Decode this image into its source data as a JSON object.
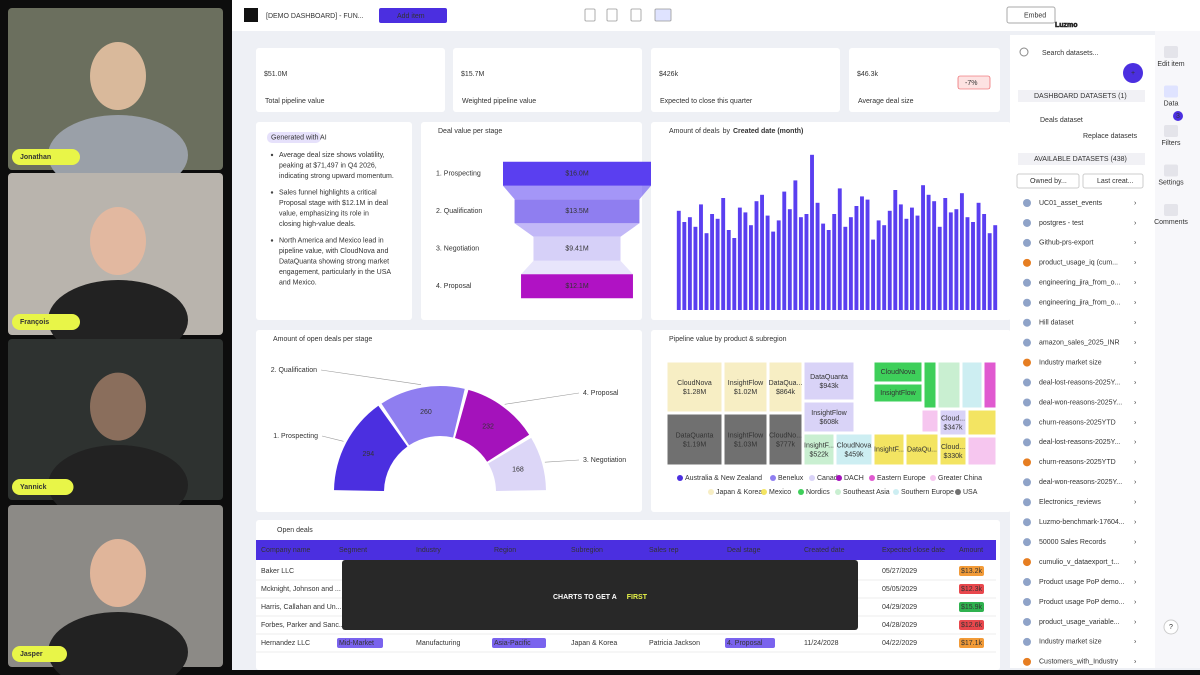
{
  "participants": [
    "Jonathan",
    "François",
    "Yannick",
    "Jasper"
  ],
  "caption": {
    "text": "CHARTS TO GET A",
    "highlight": "FIRST"
  },
  "logo": "Luzmo",
  "toolbar": {
    "dashboard_name": "[DEMO DASHBOARD] - FUN...",
    "add_item": "Add item",
    "embed": "Embed"
  },
  "kpis": [
    {
      "value": "$51.0M",
      "label": "Total pipeline value"
    },
    {
      "value": "$15.7M",
      "label": "Weighted pipeline value"
    },
    {
      "value": "$426k",
      "label": "Expected to close this quarter"
    },
    {
      "value": "$46.3k",
      "label": "Average deal size",
      "badge": "-7%"
    }
  ],
  "ai_card": {
    "tag": "Generated with AI",
    "bullets": [
      "Average deal size shows volatility, peaking at $71,497 in Q4 2026, indicating strong upward momentum.",
      "Sales funnel highlights a critical Proposal stage with $12.1M in deal value, emphasizing its role in closing high-value deals.",
      "North America and Mexico lead in pipeline value, with CloudNova and DataQuanta showing strong market engagement, particularly in the USA and Mexico."
    ]
  },
  "chart_data": [
    {
      "type": "funnel",
      "title": "Deal value per stage",
      "categories": [
        "1. Prospecting",
        "2. Qualification",
        "3. Negotiation",
        "4. Proposal"
      ],
      "values": [
        16.0,
        13.5,
        9.41,
        12.1
      ],
      "value_labels": [
        "$16.0M",
        "$13.5M",
        "$9.41M",
        "$12.1M"
      ],
      "colors": [
        "#5a3ff0",
        "#8f7ef0",
        "#d6d0f8",
        "#b012c4"
      ]
    },
    {
      "type": "bar",
      "title": "Amount of deals",
      "by": "by",
      "dimension": "Created date (month)",
      "color": "#5a3ff0",
      "ylim": [
        0,
        100
      ],
      "values": [
        62,
        55,
        58,
        52,
        66,
        48,
        60,
        57,
        70,
        50,
        45,
        64,
        61,
        53,
        68,
        72,
        59,
        49,
        56,
        74,
        63,
        81,
        58,
        60,
        97,
        67,
        54,
        50,
        60,
        76,
        52,
        58,
        65,
        71,
        69,
        44,
        56,
        53,
        62,
        75,
        66,
        57,
        64,
        59,
        78,
        72,
        68,
        52,
        70,
        61,
        63,
        73,
        58,
        55,
        67,
        60,
        48,
        53
      ]
    },
    {
      "type": "semi-donut",
      "title": "Amount of open deals per stage",
      "categories": [
        "1. Prospecting",
        "2. Qualification",
        "4. Proposal",
        "3. Negotiation"
      ],
      "values": [
        294,
        260,
        232,
        168
      ],
      "colors": [
        "#4b2fe0",
        "#8f7ef0",
        "#a412bb",
        "#dcd6f7"
      ]
    },
    {
      "type": "treemap",
      "title": "Pipeline value by product & subregion",
      "categories": [
        "CloudNova",
        "InsightFlow",
        "DataQua...",
        "DataQuanta",
        "InsightFlow",
        "CloudNo...",
        "DataQuanta",
        "InsightFlow",
        "InsightF...",
        "CloudNova",
        "CloudNova",
        "InsightFlow",
        "Cloud...",
        "Cloud...",
        "InsightF...",
        "DataQu..."
      ],
      "values": [
        1280000,
        1020000,
        864000,
        1190000,
        1030000,
        777000,
        943000,
        608000,
        522000,
        459000,
        350000,
        300000,
        347000,
        330000,
        290000,
        280000
      ],
      "value_labels": [
        "$1.28M",
        "$1.02M",
        "$864k",
        "$1.19M",
        "$1.03M",
        "$777k",
        "$943k",
        "$608k",
        "$522k",
        "$459k",
        null,
        null,
        "$347k",
        "$330k",
        null,
        null
      ],
      "colors": [
        "#f7eec4",
        "#f7eec4",
        "#f7eec4",
        "#707070",
        "#707070",
        "#707070",
        "#d9d3f7",
        "#d9d3f7",
        "#c9efd1",
        "#cdeef2",
        "#3ecf5a",
        "#3ecf5a",
        "#d9d3f7",
        "#f3e462",
        "#f3e462",
        "#f3e462"
      ],
      "legend": [
        {
          "name": "Australia & New Zealand",
          "color": "#4b2fe0"
        },
        {
          "name": "Benelux",
          "color": "#8f7ef0"
        },
        {
          "name": "Canada",
          "color": "#d9d3f7"
        },
        {
          "name": "DACH",
          "color": "#a412bb"
        },
        {
          "name": "Eastern Europe",
          "color": "#e05ad0"
        },
        {
          "name": "Greater China",
          "color": "#f6c6ef"
        },
        {
          "name": "Japan & Korea",
          "color": "#f7eec4"
        },
        {
          "name": "Mexico",
          "color": "#f3e462"
        },
        {
          "name": "Nordics",
          "color": "#3ecf5a"
        },
        {
          "name": "Southeast Asia",
          "color": "#c9efd1"
        },
        {
          "name": "Southern Europe",
          "color": "#cdeef2"
        },
        {
          "name": "USA",
          "color": "#707070"
        }
      ]
    }
  ],
  "table": {
    "title": "Open deals",
    "headers": [
      "Company name",
      "Segment",
      "Industry",
      "Region",
      "Subregion",
      "Sales rep",
      "Deal stage",
      "Created date",
      "Expected close date",
      "Amount"
    ],
    "rows": [
      {
        "company": "Baker LLC",
        "close": "05/27/2029",
        "amount": "$13.2k",
        "amount_color": "#f29b38"
      },
      {
        "company": "Mcknight, Johnson and ...",
        "close": "05/05/2029",
        "amount": "$12.3k",
        "amount_color": "#e8474c"
      },
      {
        "company": "Harris, Callahan and Un...",
        "close": "04/29/2029",
        "amount": "$15.9k",
        "amount_color": "#2fb24f"
      },
      {
        "company": "Forbes, Parker and Sanc...",
        "close": "04/28/2029",
        "amount": "$12.6k",
        "amount_color": "#e8474c"
      },
      {
        "company": "Hernandez LLC",
        "segment": "Mid-Market",
        "industry": "Manufacturing",
        "region": "Asia-Pacific",
        "subregion": "Japan & Korea",
        "sales_rep": "Patricia Jackson",
        "deal_stage": "4. Proposal",
        "created": "11/24/2028",
        "close": "04/22/2029",
        "amount": "$17.1k",
        "amount_color": "#f29b38"
      }
    ]
  },
  "sidebar": {
    "search": "Search datasets...",
    "dashboard_datasets": "DASHBOARD DATASETS (1)",
    "current": "Deals dataset",
    "replace": "Replace datasets",
    "available": "AVAILABLE DATASETS (438)",
    "filter_owner": "Owned by...",
    "filter_sort": "Last creat...",
    "datasets": [
      "UC01_asset_events",
      "postgres - test",
      "Github-prs-export",
      "product_usage_iq (cum...",
      "engineering_jira_from_o...",
      "engineering_jira_from_o...",
      "Hill dataset",
      "amazon_sales_2025_INR",
      "Industry market size",
      "deal-lost-reasons-2025Y...",
      "deal-won-reasons-2025Y...",
      "churn-reasons-2025YTD",
      "deal-lost-reasons-2025Y...",
      "churn-reasons-2025YTD",
      "deal-won-reasons-2025Y...",
      "Electronics_reviews",
      "Luzmo-benchmark-17604...",
      "50000 Sales Records",
      "cumulio_v_dataexport_t...",
      "Product usage PoP demo...",
      "Product usage PoP demo...",
      "product_usage_variable...",
      "Industry market size",
      "Customers_with_Industry"
    ]
  },
  "rail": {
    "items": [
      "Edit item",
      "Data",
      "Filters",
      "Settings",
      "Comments"
    ],
    "badge": "3",
    "help": "?"
  }
}
